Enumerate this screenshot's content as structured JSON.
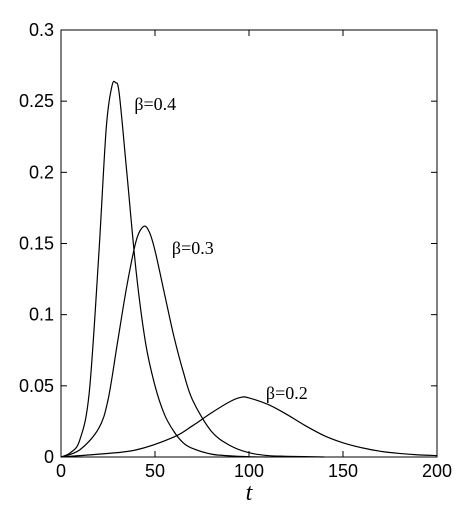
{
  "chart_data": {
    "type": "line",
    "title": "",
    "xlabel": "t",
    "ylabel": "",
    "xlim": [
      0,
      200
    ],
    "ylim": [
      0,
      0.3
    ],
    "grid": false,
    "x_ticks": [
      "0",
      "50",
      "100",
      "150",
      "200"
    ],
    "y_ticks": [
      "0",
      "0.05",
      "0.1",
      "0.15",
      "0.2",
      "0.25",
      "0.3"
    ],
    "series": [
      {
        "name": "β=0.4",
        "x": [
          0,
          5,
          10,
          15,
          20,
          24,
          27,
          29,
          31,
          35,
          40,
          45,
          50,
          55,
          60,
          65,
          70,
          80,
          90,
          100,
          110
        ],
        "y": [
          0.0,
          0.003,
          0.012,
          0.045,
          0.14,
          0.23,
          0.26,
          0.263,
          0.255,
          0.2,
          0.13,
          0.08,
          0.05,
          0.03,
          0.018,
          0.01,
          0.006,
          0.002,
          0.0008,
          0.0002,
          0.0
        ]
      },
      {
        "name": "β=0.3",
        "x": [
          0,
          10,
          20,
          25,
          30,
          35,
          40,
          44,
          47,
          50,
          55,
          60,
          65,
          70,
          80,
          90,
          100,
          110,
          120,
          140
        ],
        "y": [
          0.0,
          0.005,
          0.02,
          0.04,
          0.08,
          0.12,
          0.152,
          0.162,
          0.158,
          0.145,
          0.115,
          0.085,
          0.06,
          0.04,
          0.018,
          0.008,
          0.003,
          0.001,
          0.0005,
          0.0
        ]
      },
      {
        "name": "β=0.2",
        "x": [
          0,
          20,
          40,
          60,
          70,
          80,
          90,
          96,
          100,
          110,
          120,
          130,
          140,
          150,
          160,
          170,
          180,
          190,
          200
        ],
        "y": [
          0.0,
          0.002,
          0.005,
          0.014,
          0.022,
          0.031,
          0.039,
          0.042,
          0.0415,
          0.037,
          0.03,
          0.022,
          0.015,
          0.01,
          0.0065,
          0.004,
          0.0025,
          0.0015,
          0.001
        ]
      }
    ],
    "annotations": [
      {
        "text": "β=0.4",
        "x": 39,
        "y": 0.248
      },
      {
        "text": "β=0.3",
        "x": 59,
        "y": 0.147
      },
      {
        "text": "β=0.2",
        "x": 109,
        "y": 0.045
      }
    ]
  }
}
